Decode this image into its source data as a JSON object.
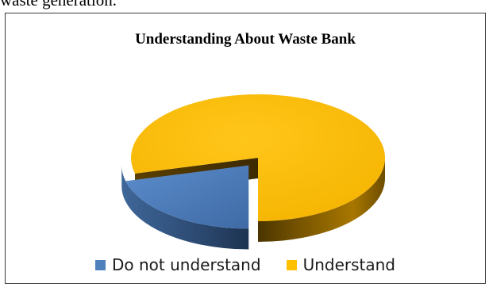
{
  "page": {
    "caption": "waste generation."
  },
  "chart_data": {
    "type": "pie",
    "title": "Understanding About Waste Bank",
    "categories": [
      "Do not understand",
      "Understand"
    ],
    "values": [
      21,
      79
    ],
    "exploded": "Do not understand",
    "colors": [
      "#4f81bd",
      "#ffc000"
    ],
    "legend_position": "bottom",
    "style": "3d"
  }
}
